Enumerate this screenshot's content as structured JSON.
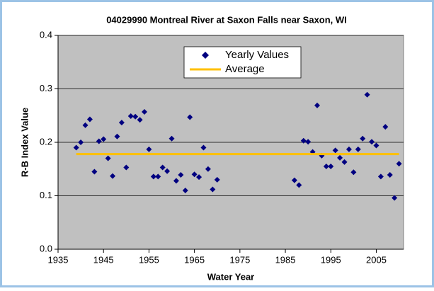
{
  "chart_data": {
    "type": "scatter",
    "title": "04029990 Montreal River at Saxon Falls near Saxon, WI",
    "x_label": "Water Year",
    "y_label": "R-B Index Value",
    "xlim": [
      1935,
      2011
    ],
    "xticks": [
      1935,
      1945,
      1955,
      1965,
      1975,
      1985,
      1995,
      2005
    ],
    "ylim": [
      0,
      0.4
    ],
    "yticks": [
      {
        "value": 0,
        "label": "0.0"
      },
      0.1,
      0.2,
      0.3,
      0.4
    ],
    "grid": true,
    "legend": "top",
    "series": [
      {
        "name": "Yearly Values",
        "color": "#000080",
        "mode": "markers",
        "x": [
          1939,
          1940,
          1941,
          1942,
          1943,
          1944,
          1945,
          1946,
          1947,
          1948,
          1949,
          1950,
          1951,
          1952,
          1953,
          1954,
          1955,
          1956,
          1957,
          1958,
          1959,
          1960,
          1961,
          1962,
          1963,
          1964,
          1965,
          1966,
          1967,
          1968,
          1969,
          1970,
          1987,
          1988,
          1989,
          1990,
          1991,
          1992,
          1993,
          1994,
          1995,
          1996,
          1997,
          1998,
          1999,
          2000,
          2001,
          2002,
          2003,
          2004,
          2005,
          2006,
          2007,
          2008,
          2009,
          2010
        ],
        "values": [
          0.19,
          0.2,
          0.232,
          0.243,
          0.145,
          0.202,
          0.206,
          0.17,
          0.137,
          0.211,
          0.237,
          0.153,
          0.249,
          0.248,
          0.242,
          0.257,
          0.187,
          0.136,
          0.136,
          0.153,
          0.146,
          0.207,
          0.128,
          0.139,
          0.11,
          0.247,
          0.14,
          0.135,
          0.19,
          0.15,
          0.112,
          0.13,
          0.129,
          0.12,
          0.203,
          0.201,
          0.182,
          0.269,
          0.175,
          0.155,
          0.155,
          0.185,
          0.171,
          0.163,
          0.187,
          0.144,
          0.187,
          0.207,
          0.289,
          0.201,
          0.194,
          0.136,
          0.229,
          0.139,
          0.096,
          0.16
        ]
      },
      {
        "name": "Average",
        "color": "#ffc000",
        "mode": "line",
        "x": [
          1939,
          2010
        ],
        "values": [
          0.178,
          0.178
        ]
      }
    ]
  }
}
